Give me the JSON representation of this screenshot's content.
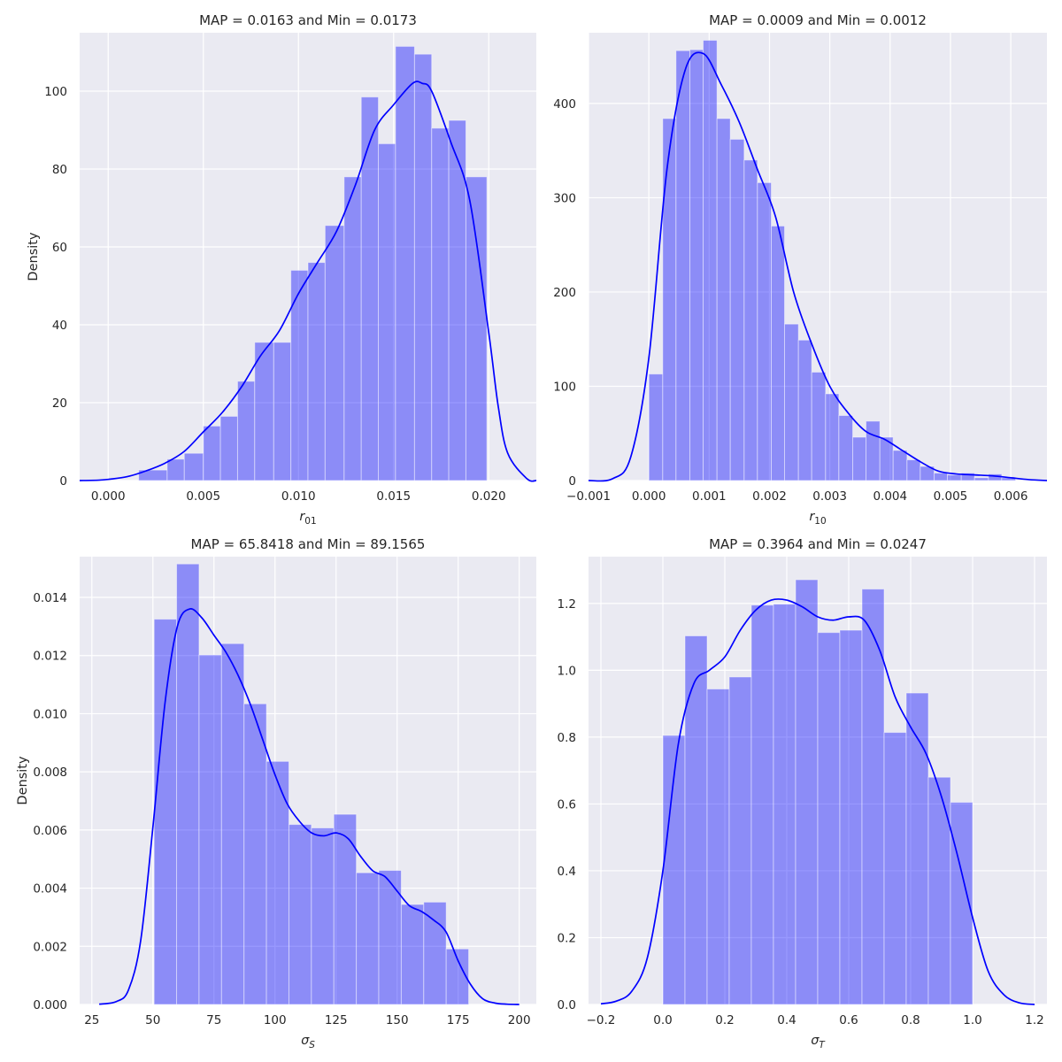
{
  "colors": {
    "plot_background": "#eaeaf2",
    "grid": "#ffffff",
    "bar": "#0000ff",
    "kde": "#0000ff"
  },
  "chart_data": [
    {
      "type": "histogram",
      "title": "MAP = 0.0163 and Min = 0.0173",
      "ylabel": "Density",
      "xlabel": {
        "base": "r",
        "sub": "01",
        "italic": true
      },
      "xlim": [
        -0.0015,
        0.0225
      ],
      "ylim": [
        0,
        115
      ],
      "xticks": [
        0.0,
        0.005,
        0.01,
        0.015,
        0.02
      ],
      "xtick_labels": [
        "0.000",
        "0.005",
        "0.010",
        "0.015",
        "0.020"
      ],
      "yticks": [
        0,
        20,
        40,
        60,
        80,
        100
      ],
      "ytick_labels": [
        "0",
        "20",
        "40",
        "60",
        "80",
        "100"
      ],
      "bin_edges": [
        0.0016,
        0.0031,
        0.004,
        0.005,
        0.0059,
        0.0068,
        0.0077,
        0.0087,
        0.0096,
        0.0105,
        0.0114,
        0.0124,
        0.0133,
        0.0142,
        0.0151,
        0.0161,
        0.017,
        0.0179,
        0.0188,
        0.0199
      ],
      "values": [
        2.7,
        5.5,
        7,
        14,
        16.5,
        25.5,
        35.5,
        35.5,
        54,
        56,
        65.5,
        78,
        98.5,
        86.5,
        111.5,
        109.5,
        90.5,
        92.5,
        78
      ],
      "kde": {
        "x": [
          -0.0015,
          -0.0005,
          0.0,
          0.001,
          0.002,
          0.003,
          0.004,
          0.005,
          0.006,
          0.007,
          0.008,
          0.009,
          0.01,
          0.011,
          0.012,
          0.013,
          0.014,
          0.015,
          0.016,
          0.0165,
          0.017,
          0.018,
          0.019,
          0.02,
          0.0205,
          0.021,
          0.022,
          0.0225
        ],
        "y": [
          0,
          0.1,
          0.3,
          1,
          2.5,
          4.5,
          7.5,
          12.5,
          17.5,
          24,
          32,
          38.5,
          48,
          56,
          64,
          76,
          90,
          96.5,
          102,
          102,
          100,
          87,
          72,
          38,
          19,
          7,
          0.5,
          0
        ]
      }
    },
    {
      "type": "histogram",
      "title": "MAP = 0.0009 and Min = 0.0012",
      "ylabel": "",
      "xlabel": {
        "base": "r",
        "sub": "10",
        "italic": true
      },
      "xlim": [
        -0.001,
        0.0066
      ],
      "ylim": [
        0,
        475
      ],
      "xticks": [
        -0.001,
        0.0,
        0.001,
        0.002,
        0.003,
        0.004,
        0.005,
        0.006
      ],
      "xtick_labels": [
        "−0.001",
        "0.000",
        "0.001",
        "0.002",
        "0.003",
        "0.004",
        "0.005",
        "0.006"
      ],
      "yticks": [
        0,
        100,
        200,
        300,
        400
      ],
      "ytick_labels": [
        "0",
        "100",
        "200",
        "300",
        "400"
      ],
      "bin_edges": [
        0.0,
        0.00023,
        0.00045,
        0.00068,
        0.0009,
        0.00113,
        0.00135,
        0.00158,
        0.0018,
        0.00203,
        0.00225,
        0.00248,
        0.0027,
        0.00293,
        0.00315,
        0.00338,
        0.0036,
        0.00383,
        0.00405,
        0.00428,
        0.0045,
        0.00473,
        0.00495,
        0.00518,
        0.0054,
        0.00563,
        0.00585,
        0.00608
      ],
      "values": [
        113,
        384,
        456,
        457,
        467,
        384,
        362,
        340,
        316,
        270,
        166,
        149,
        115,
        92,
        69,
        46,
        63,
        46,
        32,
        22,
        15,
        8,
        6,
        8,
        3,
        7,
        3
      ],
      "kde": {
        "x": [
          -0.001,
          -0.0006,
          -0.0003,
          0.0,
          0.0003,
          0.0006,
          0.0009,
          0.0012,
          0.0015,
          0.0018,
          0.0021,
          0.0024,
          0.0027,
          0.003,
          0.0033,
          0.0036,
          0.0039,
          0.0042,
          0.0045,
          0.0048,
          0.0051,
          0.0054,
          0.0057,
          0.006,
          0.0063,
          0.0066
        ],
        "y": [
          0,
          2,
          25,
          130,
          330,
          435,
          453,
          420,
          380,
          330,
          280,
          200,
          145,
          100,
          72,
          52,
          44,
          32,
          20,
          10,
          7,
          6,
          5,
          3,
          1,
          0
        ]
      }
    },
    {
      "type": "histogram",
      "title": "MAP = 65.8418 and Min = 89.1565",
      "ylabel": "Density",
      "xlabel": {
        "base": "σ",
        "sub": "S",
        "italic": true
      },
      "xlim": [
        20,
        207
      ],
      "ylim": [
        0,
        0.0154
      ],
      "xticks": [
        25,
        50,
        75,
        100,
        125,
        150,
        175,
        200
      ],
      "xtick_labels": [
        "25",
        "50",
        "75",
        "100",
        "125",
        "150",
        "175",
        "200"
      ],
      "yticks": [
        0,
        0.002,
        0.004,
        0.006,
        0.008,
        0.01,
        0.012,
        0.014
      ],
      "ytick_labels": [
        "0.000",
        "0.002",
        "0.004",
        "0.006",
        "0.008",
        "0.010",
        "0.012",
        "0.014"
      ],
      "bin_edges": [
        50.5,
        59.7,
        68.9,
        78.1,
        87.3,
        96.5,
        105.7,
        114.9,
        124.1,
        133.3,
        142.5,
        151.7,
        160.9,
        170.1,
        179.3
      ],
      "values": [
        0.01325,
        0.01515,
        0.01202,
        0.01241,
        0.01034,
        0.00836,
        0.00619,
        0.00607,
        0.00654,
        0.00453,
        0.00461,
        0.00344,
        0.00352,
        0.00191
      ],
      "kde": {
        "x": [
          28,
          35,
          40,
          45,
          50,
          55,
          60,
          65,
          70,
          75,
          80,
          85,
          90,
          95,
          100,
          105,
          110,
          115,
          120,
          125,
          130,
          135,
          140,
          145,
          150,
          155,
          160,
          165,
          170,
          175,
          180,
          185,
          190,
          195,
          200
        ],
        "y": [
          1e-05,
          0.0001,
          0.0005,
          0.0022,
          0.0061,
          0.0104,
          0.013,
          0.0136,
          0.0133,
          0.0127,
          0.0121,
          0.0113,
          0.0103,
          0.0091,
          0.0079,
          0.0069,
          0.0063,
          0.0059,
          0.0058,
          0.0059,
          0.0057,
          0.0051,
          0.0046,
          0.0044,
          0.0039,
          0.0034,
          0.0032,
          0.0029,
          0.0025,
          0.0015,
          0.0007,
          0.0002,
          5e-05,
          1e-05,
          0
        ]
      }
    },
    {
      "type": "histogram",
      "title": "MAP = 0.3964 and Min = 0.0247",
      "ylabel": "",
      "xlabel": {
        "base": "σ",
        "sub": "T",
        "italic": true
      },
      "xlim": [
        -0.24,
        1.24
      ],
      "ylim": [
        0,
        1.34
      ],
      "xticks": [
        -0.2,
        0.0,
        0.2,
        0.4,
        0.6,
        0.8,
        1.0,
        1.2
      ],
      "xtick_labels": [
        "−0.2",
        "0.0",
        "0.2",
        "0.4",
        "0.6",
        "0.8",
        "1.0",
        "1.2"
      ],
      "yticks": [
        0,
        0.2,
        0.4,
        0.6,
        0.8,
        1.0,
        1.2
      ],
      "ytick_labels": [
        "0.0",
        "0.2",
        "0.4",
        "0.6",
        "0.8",
        "1.0",
        "1.2"
      ],
      "bin_edges": [
        0.0,
        0.0714,
        0.1429,
        0.2143,
        0.2857,
        0.3571,
        0.4286,
        0.5,
        0.5714,
        0.6429,
        0.7143,
        0.7857,
        0.8571,
        0.9286,
        1.0
      ],
      "values": [
        0.805,
        1.103,
        0.944,
        0.98,
        1.195,
        1.198,
        1.271,
        1.113,
        1.12,
        1.243,
        0.814,
        0.932,
        0.68,
        0.605
      ],
      "kde": {
        "x": [
          -0.2,
          -0.15,
          -0.1,
          -0.05,
          0.0,
          0.05,
          0.1,
          0.15,
          0.2,
          0.25,
          0.3,
          0.35,
          0.4,
          0.45,
          0.5,
          0.55,
          0.6,
          0.65,
          0.7,
          0.75,
          0.8,
          0.85,
          0.9,
          0.95,
          1.0,
          1.05,
          1.1,
          1.15,
          1.2
        ],
        "y": [
          0.002,
          0.01,
          0.04,
          0.14,
          0.4,
          0.78,
          0.96,
          1.0,
          1.04,
          1.12,
          1.18,
          1.21,
          1.21,
          1.19,
          1.16,
          1.15,
          1.16,
          1.15,
          1.06,
          0.92,
          0.83,
          0.75,
          0.62,
          0.45,
          0.26,
          0.1,
          0.03,
          0.005,
          0
        ]
      }
    }
  ]
}
